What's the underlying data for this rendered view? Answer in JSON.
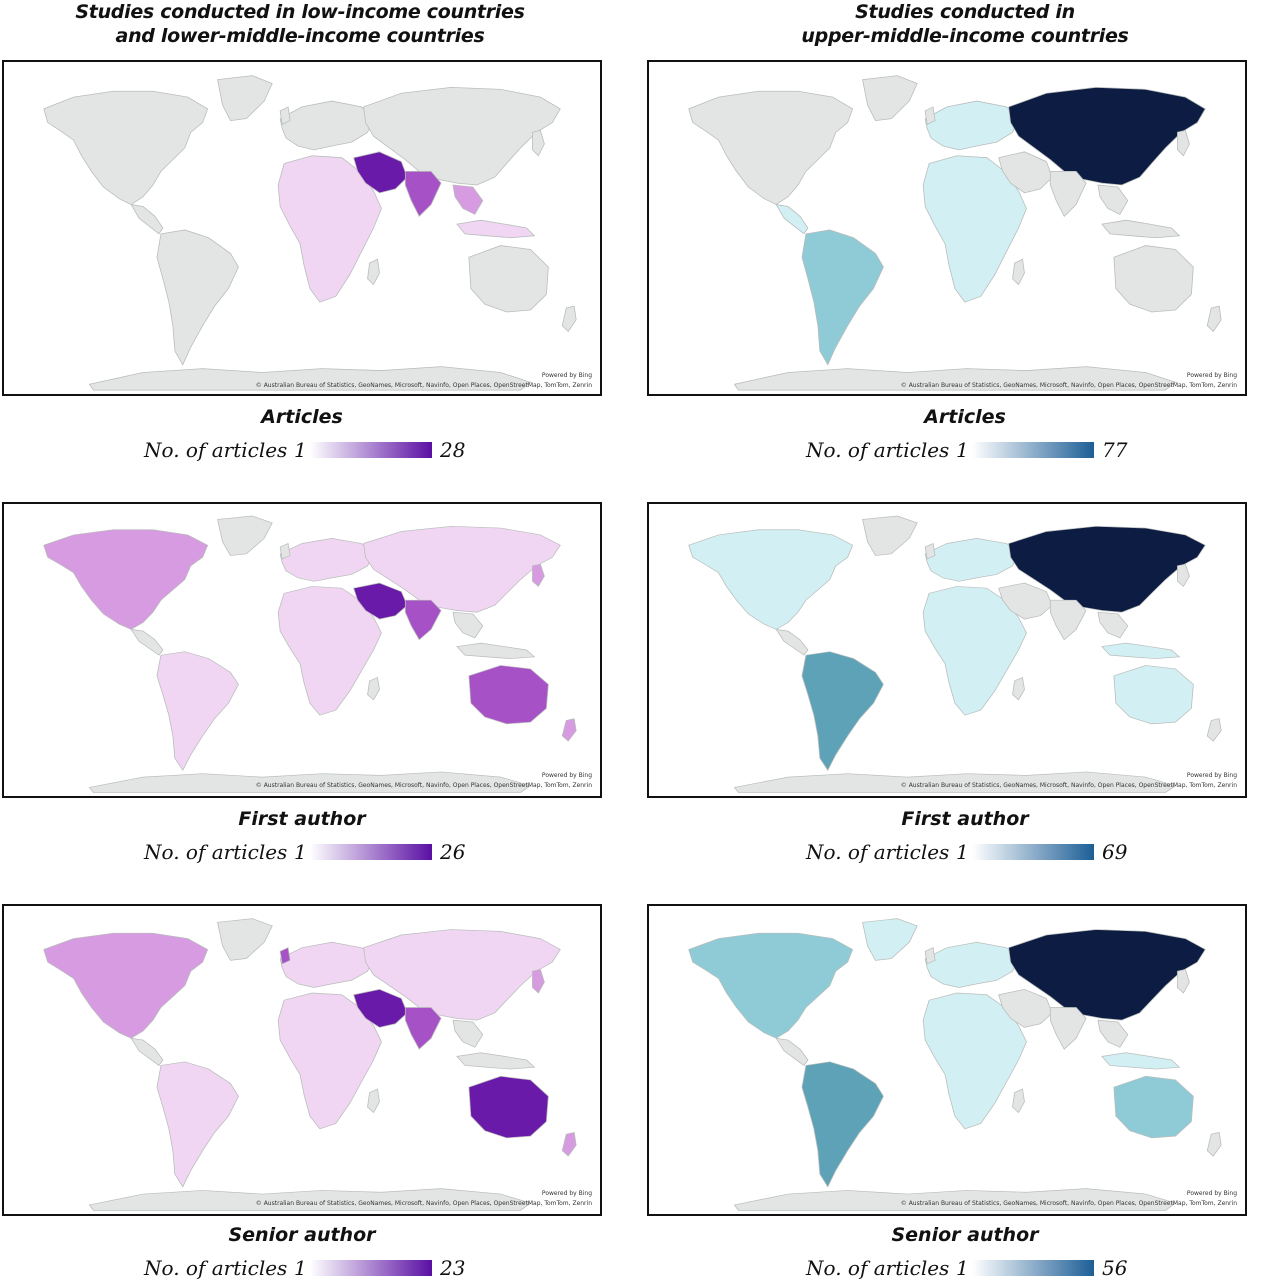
{
  "columns": [
    {
      "title_line1": "Studies conducted in low-income countries",
      "title_line2": "and lower-middle-income countries"
    },
    {
      "title_line1": "Studies conducted in",
      "title_line2": "upper-middle-income countries"
    }
  ],
  "map_credit": {
    "powered": "Powered by Bing",
    "attribution": "© Australian Bureau of Statistics, GeoNames, Microsoft, Navinfo, Open Places, OpenStreetMap, TomTom, Zenrin"
  },
  "legend_label": "No. of articles",
  "panels": [
    {
      "label": "Articles",
      "min": "1",
      "max": "28",
      "palette": "purple",
      "start_color": "#ffffff",
      "end_color": "#5a0fa3"
    },
    {
      "label": "Articles",
      "min": "1",
      "max": "77",
      "palette": "blue",
      "start_color": "#ffffff",
      "end_color": "#1d5e96"
    },
    {
      "label": "First author",
      "min": "1",
      "max": "26",
      "palette": "purple",
      "start_color": "#ffffff",
      "end_color": "#5a0fa3"
    },
    {
      "label": "First author",
      "min": "1",
      "max": "69",
      "palette": "blue",
      "start_color": "#ffffff",
      "end_color": "#1d5e96"
    },
    {
      "label": "Senior author",
      "min": "1",
      "max": "23",
      "palette": "purple",
      "start_color": "#ffffff",
      "end_color": "#5a0fa3"
    },
    {
      "label": "Senior author",
      "min": "1",
      "max": "56",
      "palette": "blue",
      "start_color": "#ffffff",
      "end_color": "#1d5e96"
    }
  ],
  "colors": {
    "land": "#e2e5e3",
    "border": "#b9bdbb",
    "purple_light": "#f0d6f2",
    "purple_mid": "#d69be0",
    "purple_strong": "#a751c7",
    "purple_dark": "#6a1aa8",
    "blue_light": "#d2f0f4",
    "blue_mid": "#8ecbd6",
    "blue_strong": "#5ea2b7",
    "navy": "#0c1c42"
  }
}
